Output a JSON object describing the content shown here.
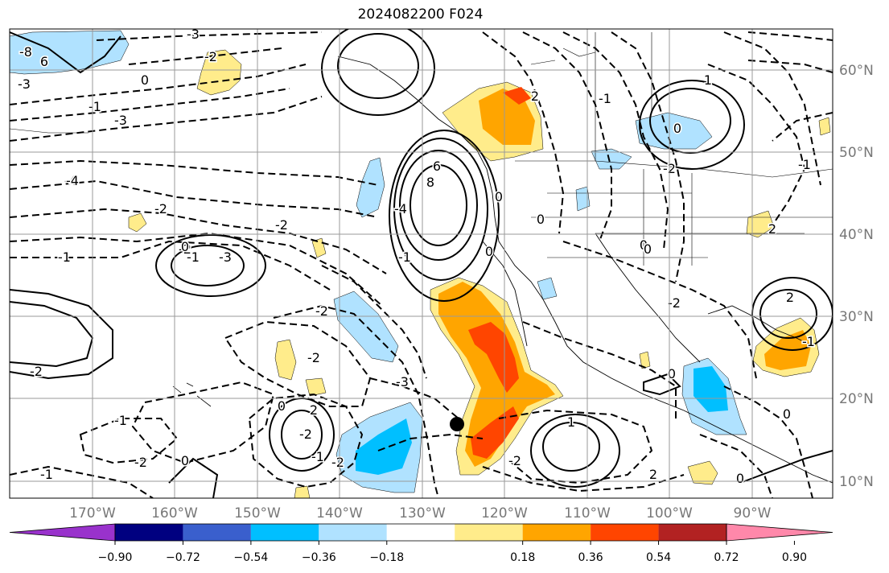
{
  "title": "2024082200 F024",
  "lat_labels": [
    "60°N",
    "50°N",
    "40°N",
    "30°N",
    "20°N",
    "10°N"
  ],
  "lon_labels": [
    "170°W",
    "160°W",
    "150°W",
    "140°W",
    "130°W",
    "120°W",
    "110°W",
    "100°W",
    "90°W"
  ],
  "colorbar": {
    "colors": [
      "#9932cc",
      "#000080",
      "#3a5fcd",
      "#00bfff",
      "#b0e2ff",
      "#ffffff",
      "#ffec8b",
      "#ffa500",
      "#ff4500",
      "#b22222",
      "#ff88aa"
    ],
    "tick_labels": [
      "−0.90",
      "−0.72",
      "−0.54",
      "−0.36",
      "−0.18",
      "0.18",
      "0.36",
      "0.54",
      "0.72",
      "0.90"
    ]
  },
  "contour_labels": [
    "-3",
    "-2",
    "-8",
    "6",
    "-4",
    "-3",
    "0",
    "-1",
    "-3",
    "-4",
    "-2",
    "-2",
    "-1",
    "-2",
    "0",
    "-1",
    "-3",
    "6",
    "8",
    "-4",
    "0",
    "0",
    "-1",
    "0",
    "-2",
    "-2",
    "-3",
    "0",
    "-1",
    "-2",
    "2",
    "-2",
    "-1",
    "0",
    "-2",
    "-1",
    "1",
    "2",
    "0",
    "2",
    "-2",
    "2",
    "-1",
    "0",
    "1",
    "0",
    "0",
    "-2",
    "2",
    "-1",
    "-1",
    "0",
    "0",
    "-2",
    "-2"
  ]
}
